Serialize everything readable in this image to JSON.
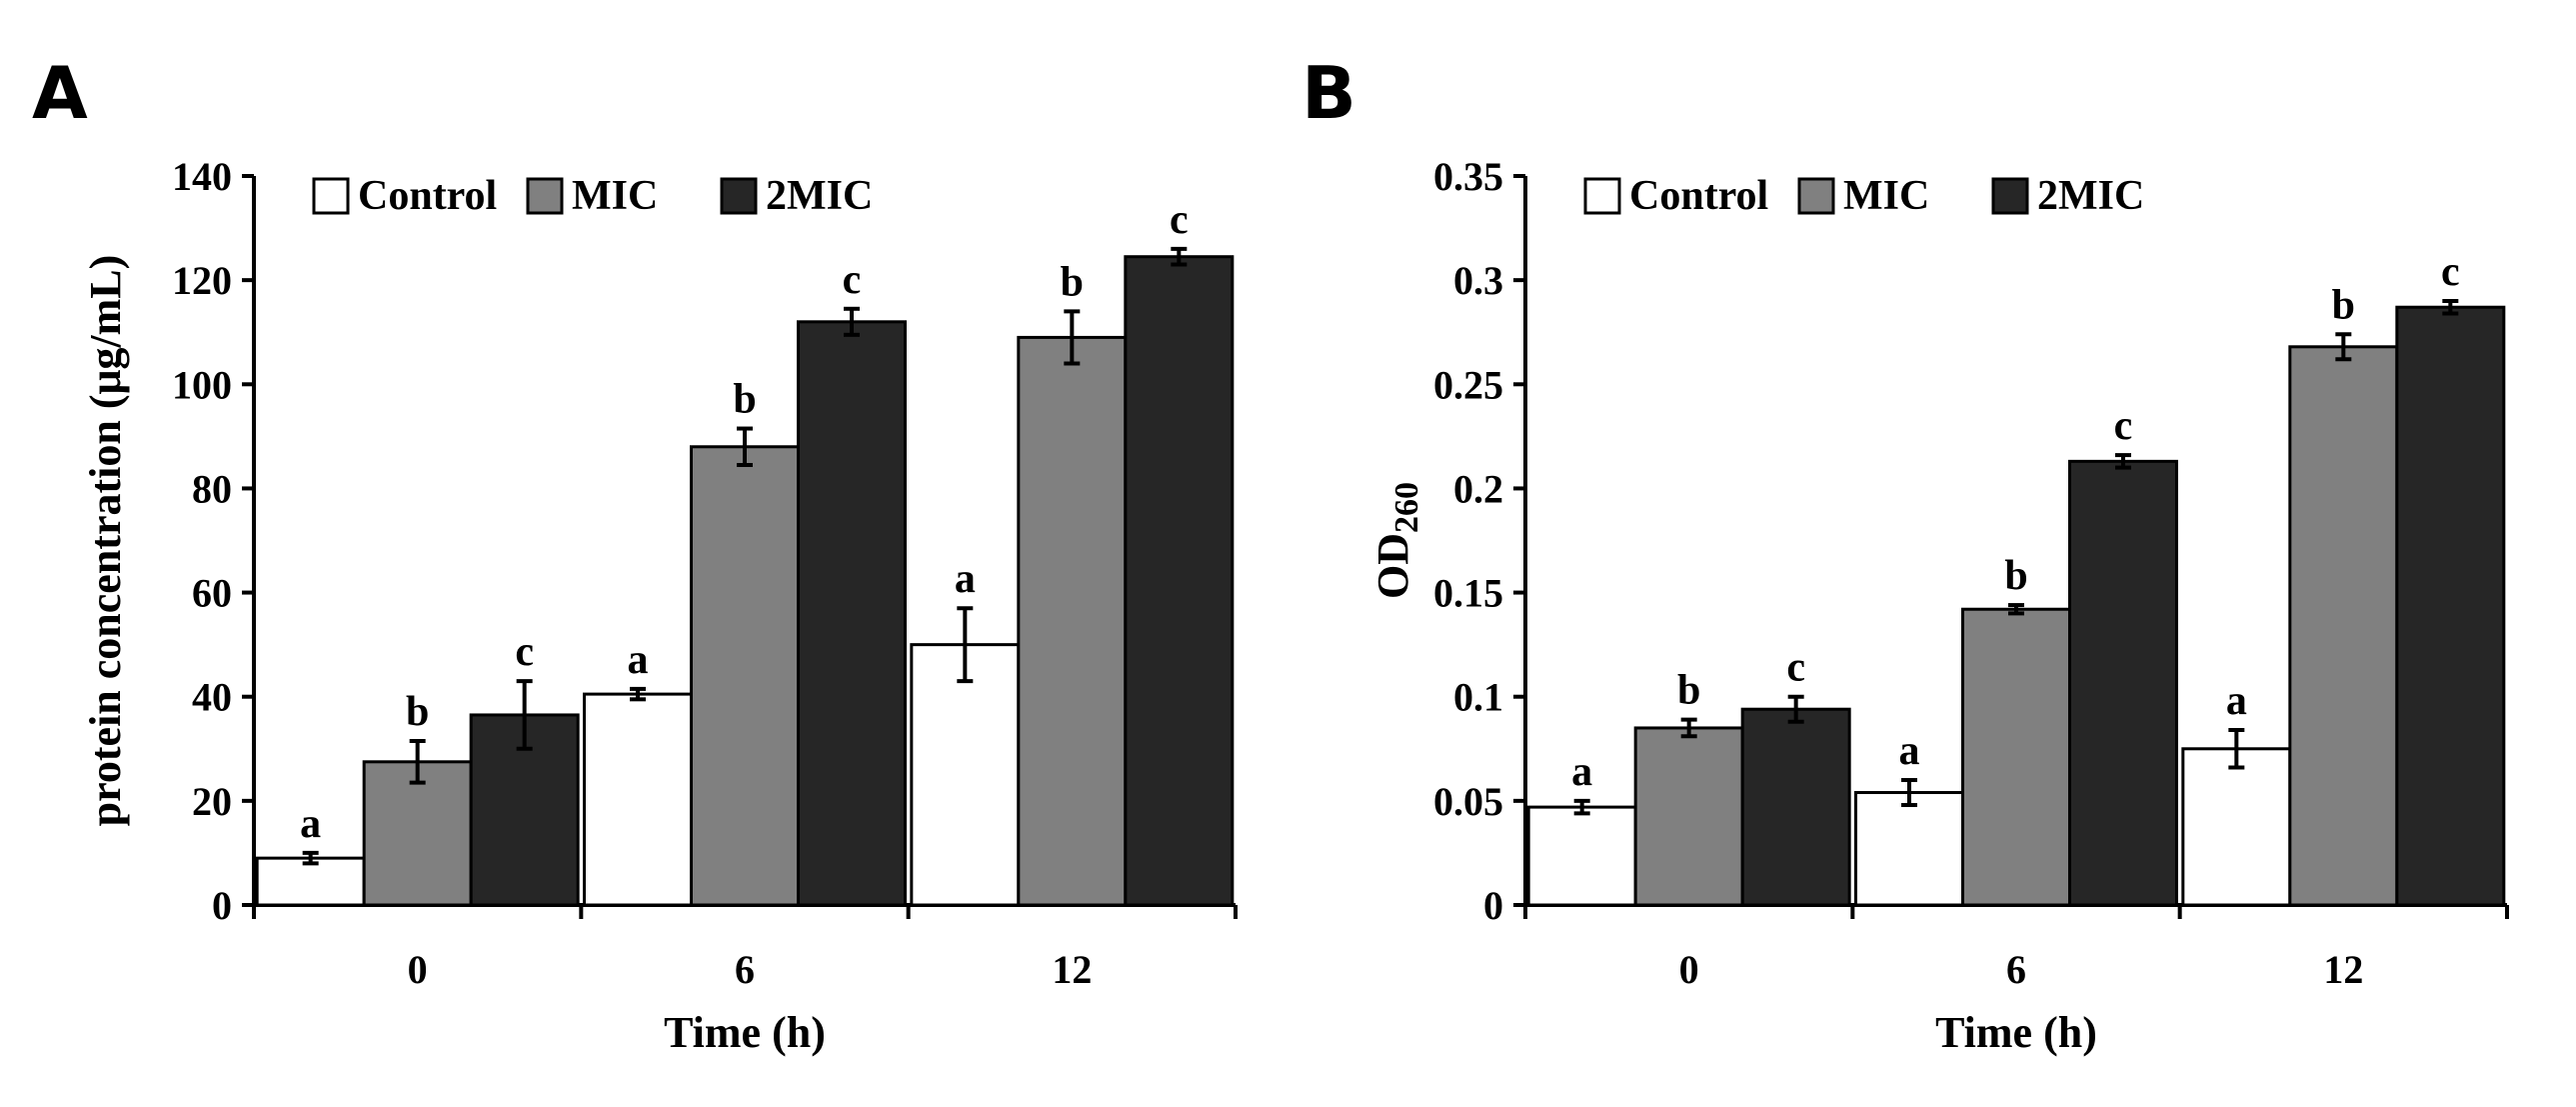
{
  "colors": {
    "Control": "#ffffff",
    "MIC": "#808080",
    "2MIC": "#262626",
    "axis": "#000000"
  },
  "chart_data": [
    {
      "panel": "A",
      "type": "bar",
      "categories": [
        "0",
        "6",
        "12"
      ],
      "series": [
        {
          "name": "Control",
          "values": [
            9,
            40.5,
            50
          ],
          "errors": [
            1,
            1,
            7
          ],
          "letters": [
            "a",
            "a",
            "a"
          ]
        },
        {
          "name": "MIC",
          "values": [
            27.5,
            88,
            109
          ],
          "errors": [
            4,
            3.5,
            5
          ],
          "letters": [
            "b",
            "b",
            "b"
          ]
        },
        {
          "name": "2MIC",
          "values": [
            36.5,
            112,
            124.5
          ],
          "errors": [
            6.5,
            2.5,
            1.5
          ],
          "letters": [
            "c",
            "c",
            "c"
          ]
        }
      ],
      "xlabel": "Time (h)",
      "ylabel": "protein concentration (μg/mL)",
      "ylim": [
        0,
        140
      ],
      "yticks": [
        0,
        20,
        40,
        60,
        80,
        100,
        120,
        140
      ],
      "ytick_labels": [
        "0",
        "20",
        "40",
        "60",
        "80",
        "100",
        "120",
        "140"
      ],
      "grid": false,
      "legend": "top-left"
    },
    {
      "panel": "B",
      "type": "bar",
      "categories": [
        "0",
        "6",
        "12"
      ],
      "series": [
        {
          "name": "Control",
          "values": [
            0.047,
            0.054,
            0.075
          ],
          "errors": [
            0.003,
            0.006,
            0.009
          ],
          "letters": [
            "a",
            "a",
            "a"
          ]
        },
        {
          "name": "MIC",
          "values": [
            0.085,
            0.142,
            0.268
          ],
          "errors": [
            0.004,
            0.002,
            0.006
          ],
          "letters": [
            "b",
            "b",
            "b"
          ]
        },
        {
          "name": "2MIC",
          "values": [
            0.094,
            0.213,
            0.287
          ],
          "errors": [
            0.006,
            0.003,
            0.003
          ],
          "letters": [
            "c",
            "c",
            "c"
          ]
        }
      ],
      "xlabel": "Time (h)",
      "ylabel": "OD",
      "ylabel_subscript": "260",
      "ylim": [
        0,
        0.35
      ],
      "yticks": [
        0,
        0.05,
        0.1,
        0.15,
        0.2,
        0.25,
        0.3,
        0.35
      ],
      "ytick_labels": [
        "0",
        "0.05",
        "0.1",
        "0.15",
        "0.2",
        "0.25",
        "0.3",
        "0.35"
      ],
      "grid": false,
      "legend": "top-left"
    }
  ]
}
